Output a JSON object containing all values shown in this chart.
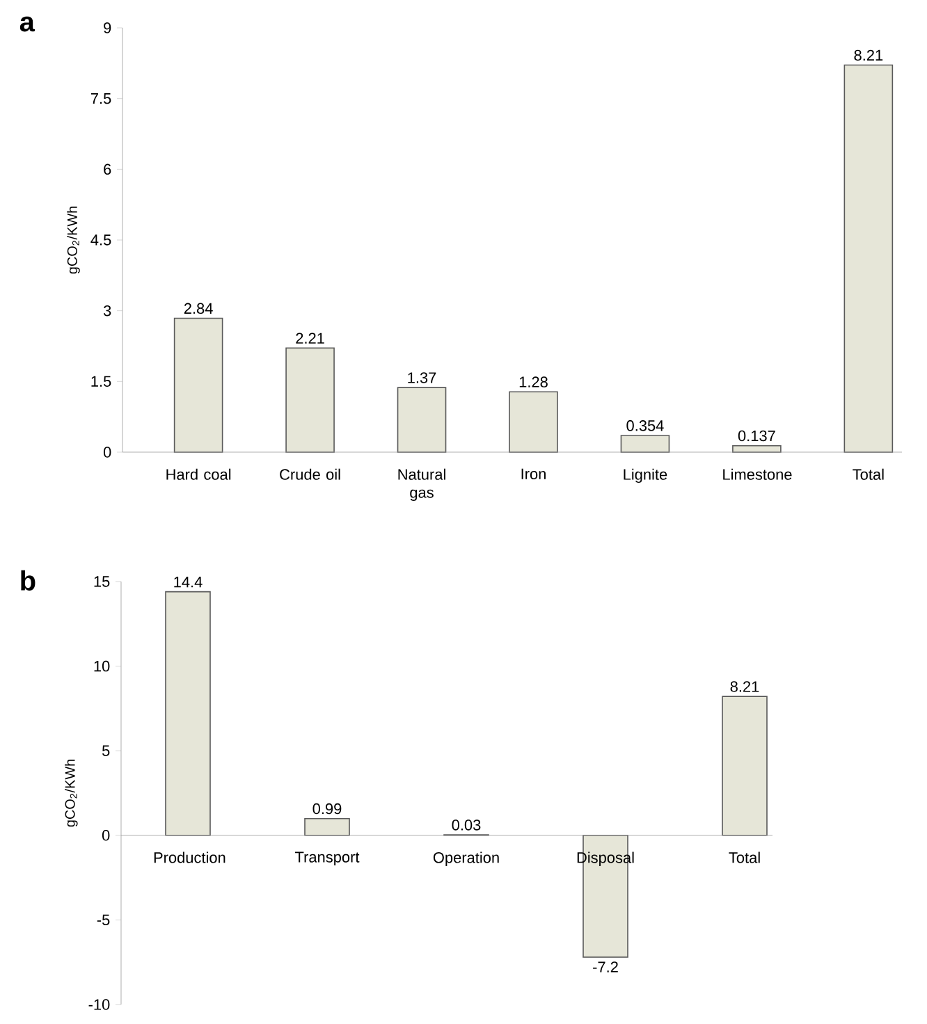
{
  "chart_data": [
    {
      "type": "bar",
      "title": "a",
      "ylabel": "gCO$_{2}$/KWh",
      "categories": [
        "Hard coal",
        "Crude oil",
        "Natural gas",
        "Iron",
        "Lignite",
        "Limestone",
        "Total"
      ],
      "values": [
        2.84,
        2.21,
        1.37,
        1.28,
        0.354,
        0.137,
        8.21
      ],
      "color": "#e6e6d8",
      "ylim": [
        0,
        9
      ],
      "yticks": [
        0,
        1.5,
        3,
        4.5,
        6,
        7.5,
        9
      ],
      "data_labels": true
    },
    {
      "type": "bar",
      "title": "b",
      "ylabel": "gCO$_{2}$/KWh",
      "categories": [
        "Production",
        "Transport",
        "Operation",
        "Disposal",
        "Total"
      ],
      "values": [
        14.4,
        0.99,
        0.03,
        -7.2,
        8.21
      ],
      "color": "#e6e6d8",
      "ylim": [
        -10,
        15
      ],
      "yticks": [
        -10,
        -5,
        0,
        5,
        10,
        15
      ],
      "data_labels": true
    }
  ]
}
